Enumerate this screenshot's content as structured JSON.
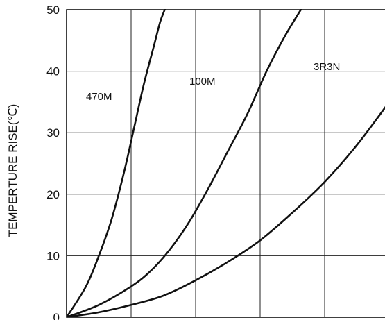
{
  "chart_data": {
    "type": "line",
    "title": "",
    "xlabel": "",
    "ylabel": "TEMPERTURE RISE(℃)",
    "ylim": [
      0,
      50
    ],
    "yticks": [
      "0",
      "10",
      "20",
      "30",
      "40",
      "50"
    ],
    "xlim": [
      0,
      5
    ],
    "x_gridlines": 5,
    "grid": true,
    "series": [
      {
        "name": "470M",
        "x": [
          0,
          0.3,
          0.5,
          0.7,
          0.9,
          1.05,
          1.2,
          1.35,
          1.45,
          1.52,
          1.58
        ],
        "y": [
          0,
          5,
          10,
          16,
          24,
          31,
          38,
          44,
          48,
          50,
          52
        ]
      },
      {
        "name": "100M",
        "x": [
          0,
          0.5,
          1.0,
          1.3,
          1.6,
          1.9,
          2.2,
          2.5,
          2.8,
          3.1,
          3.4,
          3.75
        ],
        "y": [
          0,
          2,
          5,
          7.5,
          11,
          15.5,
          21,
          27,
          33,
          40,
          46,
          52
        ]
      },
      {
        "name": "3R3N",
        "x": [
          0,
          0.5,
          1.0,
          1.5,
          2.0,
          2.5,
          3.0,
          3.5,
          4.0,
          4.5,
          5.0,
          5.2
        ],
        "y": [
          0,
          0.8,
          2,
          3.5,
          6,
          9,
          12.5,
          17,
          22,
          28,
          35,
          38
        ]
      }
    ]
  }
}
